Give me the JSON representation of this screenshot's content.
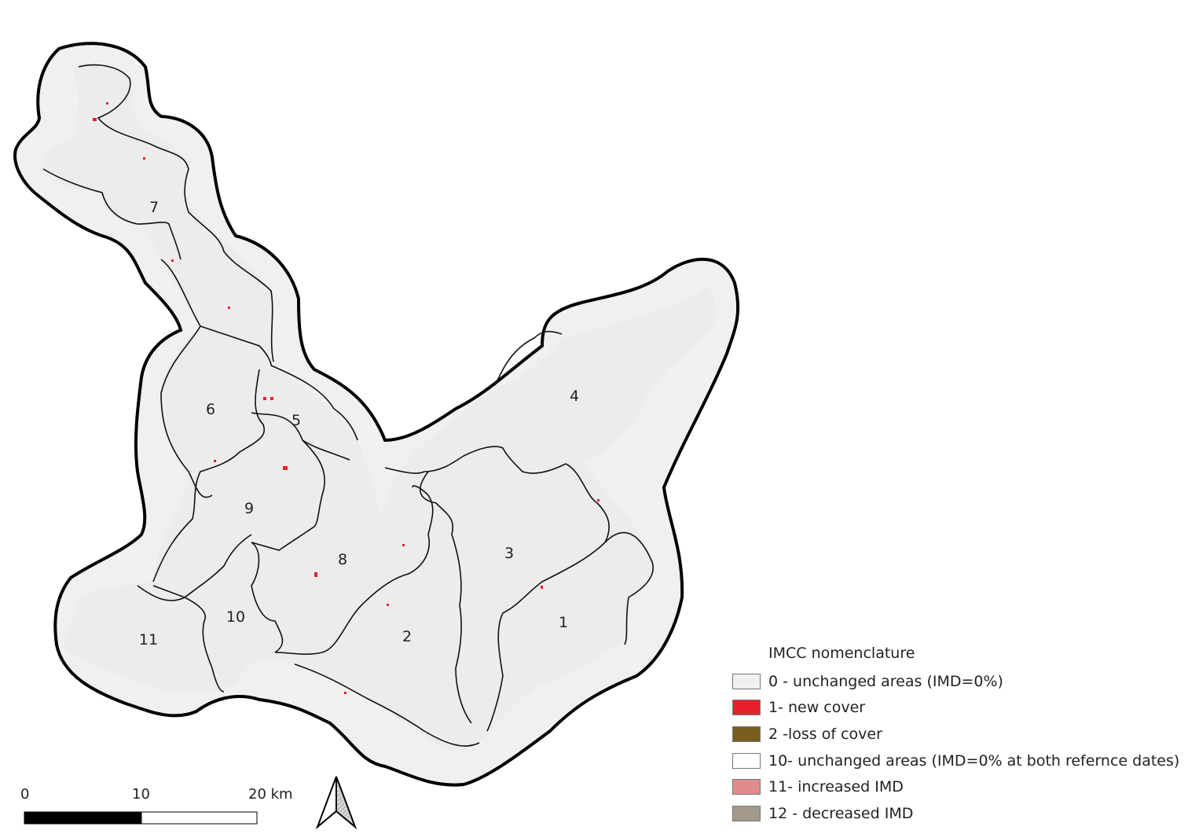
{
  "map": {
    "zones": [
      {
        "id": "1",
        "label": "1"
      },
      {
        "id": "2",
        "label": "2"
      },
      {
        "id": "3",
        "label": "3"
      },
      {
        "id": "4",
        "label": "4"
      },
      {
        "id": "5",
        "label": "5"
      },
      {
        "id": "6",
        "label": "6"
      },
      {
        "id": "7",
        "label": "7"
      },
      {
        "id": "8",
        "label": "8"
      },
      {
        "id": "9",
        "label": "9"
      },
      {
        "id": "10",
        "label": "10"
      },
      {
        "id": "11",
        "label": "11"
      }
    ]
  },
  "legend": {
    "title": "IMCC nomenclature",
    "items": [
      {
        "label": "0 - unchanged areas (IMD=0%)",
        "color": "#f0f0f0"
      },
      {
        "label": "1- new cover",
        "color": "#e8202a"
      },
      {
        "label": "2 -loss of cover",
        "color": "#7a5c1e"
      },
      {
        "label": "10- unchanged areas (IMD=0% at both refernce dates)",
        "color": "#ffffff"
      },
      {
        "label": "11- increased IMD",
        "color": "#e08c8c"
      },
      {
        "label": "12 - decreased IMD",
        "color": "#a39a8c"
      }
    ]
  },
  "scale_bar": {
    "ticks": [
      "0",
      "10",
      "20 km"
    ]
  },
  "north_arrow": {
    "icon": "north-arrow-icon"
  }
}
